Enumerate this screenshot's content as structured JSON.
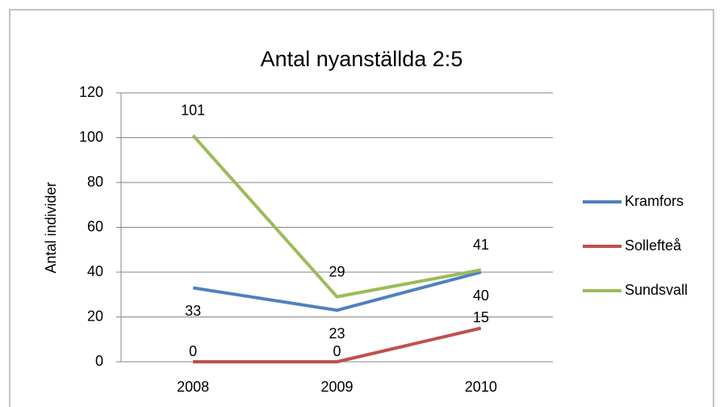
{
  "chart_data": {
    "type": "line",
    "title": "Antal nyanställda 2:5",
    "y_label": "Antal individer",
    "categories": [
      "2008",
      "2009",
      "2010"
    ],
    "series": [
      {
        "name": "Kramfors",
        "color": "#4f81bd",
        "values": [
          33,
          23,
          40
        ]
      },
      {
        "name": "Sollefteå",
        "color": "#c0504d",
        "values": [
          0,
          0,
          15
        ]
      },
      {
        "name": "Sundsvall",
        "color": "#9bbb59",
        "values": [
          101,
          29,
          41
        ]
      }
    ],
    "ylim": [
      0,
      120
    ],
    "yticks": [
      0,
      20,
      40,
      60,
      80,
      100,
      120
    ],
    "grid": true,
    "legend": "right"
  }
}
